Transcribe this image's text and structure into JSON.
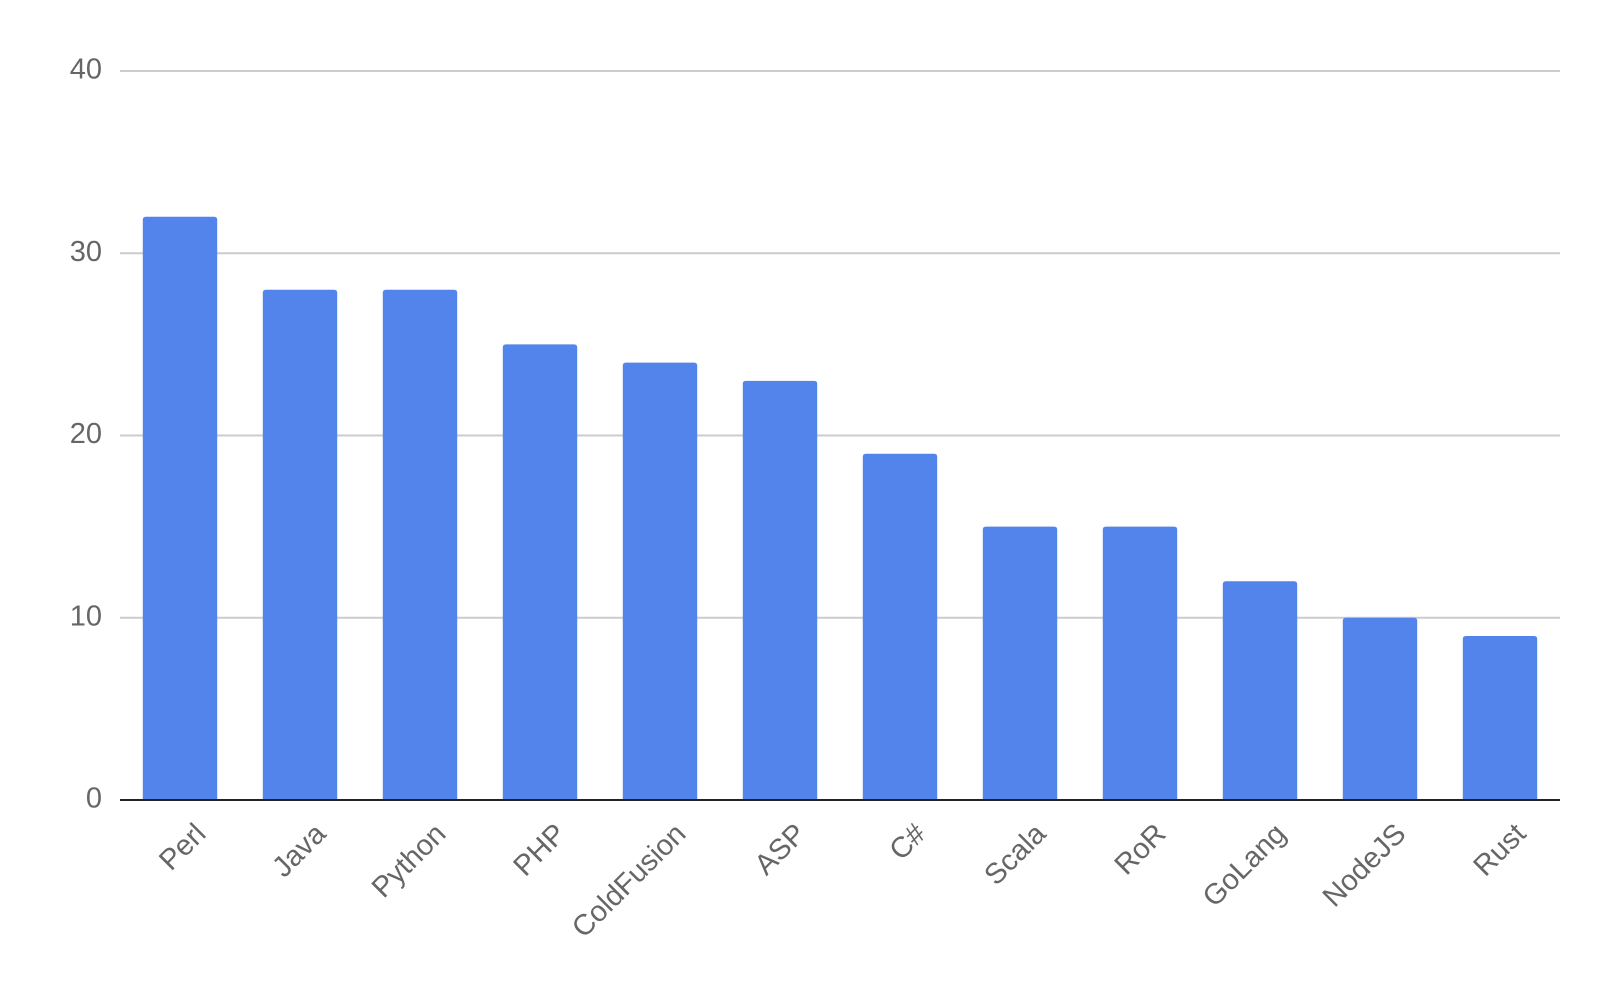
{
  "chart_data": {
    "type": "bar",
    "categories": [
      "Perl",
      "Java",
      "Python",
      "PHP",
      "ColdFusion",
      "ASP",
      "C#",
      "Scala",
      "RoR",
      "GoLang",
      "NodeJS",
      "Rust"
    ],
    "values": [
      32,
      28,
      28,
      25,
      24,
      23,
      19,
      15,
      15,
      12,
      10,
      9
    ],
    "color": "#5384ec",
    "ylim": [
      0,
      40
    ],
    "yticks": [
      0,
      10,
      20,
      30,
      40
    ],
    "grid": true
  }
}
